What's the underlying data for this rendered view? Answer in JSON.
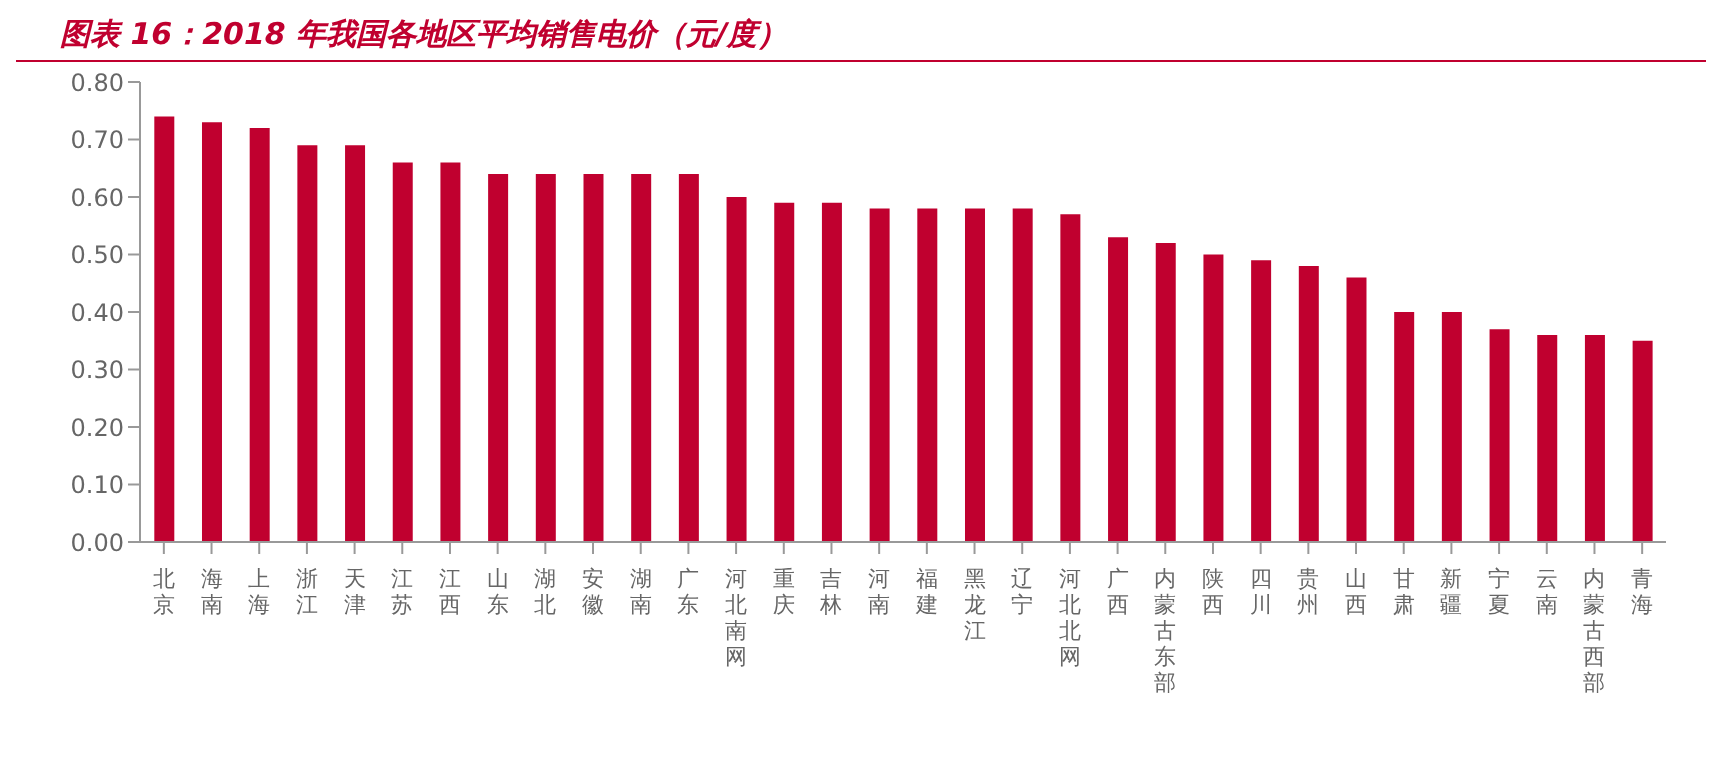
{
  "chart_data": {
    "type": "bar",
    "title": "图表 16：2018 年我国各地区平均销售电价（元/度）",
    "categories": [
      "北京",
      "海南",
      "上海",
      "浙江",
      "天津",
      "江苏",
      "江西",
      "山东",
      "湖北",
      "安徽",
      "湖南",
      "广东",
      "河北南网",
      "重庆",
      "吉林",
      "河南",
      "福建",
      "黑龙江",
      "辽宁",
      "河北北网",
      "广西",
      "内蒙古东部",
      "陕西",
      "四川",
      "贵州",
      "山西",
      "甘肃",
      "新疆",
      "宁夏",
      "云南",
      "内蒙古西部",
      "青海"
    ],
    "values": [
      0.74,
      0.73,
      0.72,
      0.69,
      0.69,
      0.66,
      0.66,
      0.64,
      0.64,
      0.64,
      0.64,
      0.64,
      0.6,
      0.59,
      0.59,
      0.58,
      0.58,
      0.58,
      0.58,
      0.57,
      0.53,
      0.52,
      0.5,
      0.49,
      0.48,
      0.46,
      0.4,
      0.4,
      0.37,
      0.36,
      0.36,
      0.35
    ],
    "color": "#c0002f",
    "ylim": [
      0,
      0.8
    ],
    "yticks": [
      {
        "value": 0,
        "label": "0.00"
      },
      {
        "value": 0.1,
        "label": "0.10"
      },
      {
        "value": 0.2,
        "label": "0.20"
      },
      {
        "value": 0.3,
        "label": "0.30"
      },
      {
        "value": 0.4,
        "label": "0.40"
      },
      {
        "value": 0.5,
        "label": "0.50"
      },
      {
        "value": 0.6,
        "label": "0.60"
      },
      {
        "value": 0.7,
        "label": "0.70"
      },
      {
        "value": 0.8,
        "label": "0.80"
      }
    ],
    "grid": false,
    "legend": false
  }
}
